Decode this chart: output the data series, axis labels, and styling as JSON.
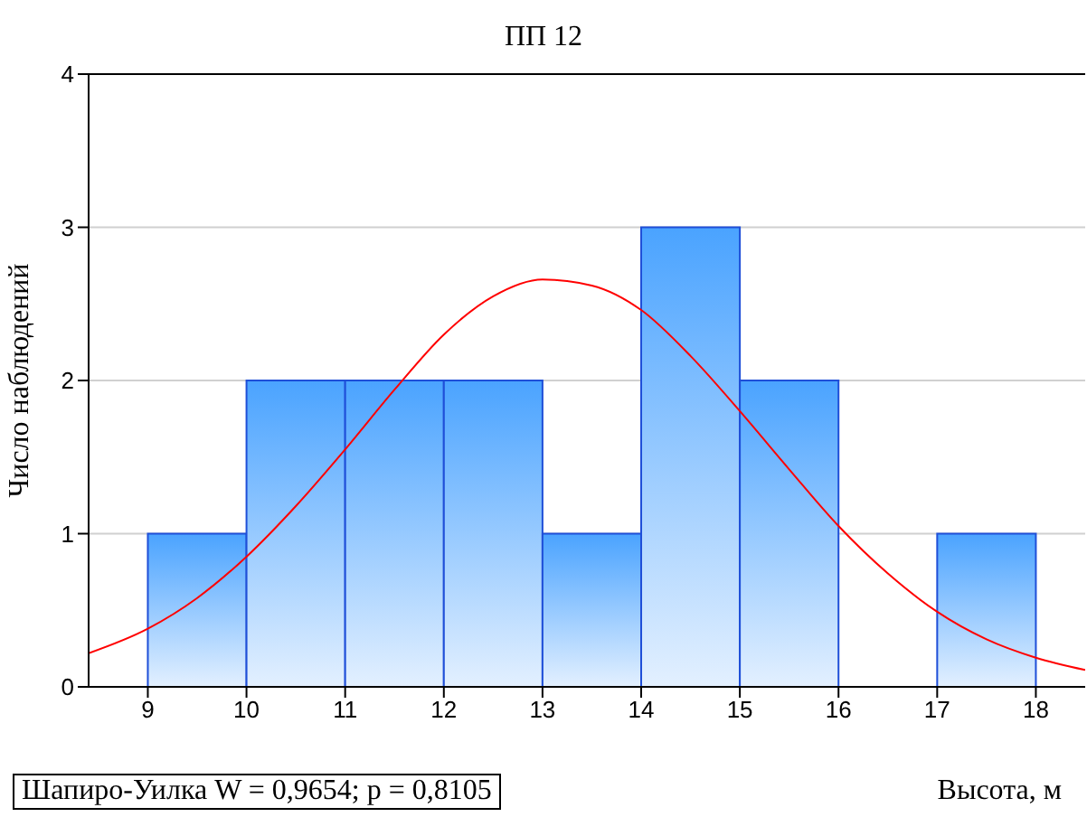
{
  "chart_data": {
    "type": "histogram",
    "title": "ПП 12",
    "xlabel": "Высота, м",
    "ylabel": "Число наблюдений",
    "bins": [
      9,
      10,
      11,
      12,
      13,
      14,
      15,
      16,
      17,
      18
    ],
    "values": [
      1,
      2,
      2,
      2,
      1,
      3,
      2,
      0,
      1
    ],
    "color": "#1f4fd8",
    "series": [
      {
        "type": "line",
        "color": "#ff0000",
        "x": [
          8.4,
          9,
          9.5,
          10,
          10.5,
          11,
          11.5,
          12,
          12.5,
          13,
          13.5,
          14,
          14.5,
          15,
          15.5,
          16,
          16.5,
          17,
          17.5,
          18,
          18.5
        ],
        "values": [
          0.22,
          0.38,
          0.58,
          0.85,
          1.18,
          1.55,
          1.94,
          2.3,
          2.55,
          2.66,
          2.62,
          2.46,
          2.16,
          1.8,
          1.42,
          1.05,
          0.74,
          0.49,
          0.31,
          0.19,
          0.11
        ]
      }
    ],
    "xlim": [
      8.4,
      18.5
    ],
    "xticks": [
      9,
      10,
      11,
      12,
      13,
      14,
      15,
      16,
      17,
      18
    ],
    "ylim": [
      0,
      4
    ],
    "yticks": [
      0,
      1,
      2,
      3,
      4
    ],
    "grid": "y",
    "annotations": [
      "Шапиро-Уилка W = 0,9654; p = 0,8105"
    ]
  }
}
